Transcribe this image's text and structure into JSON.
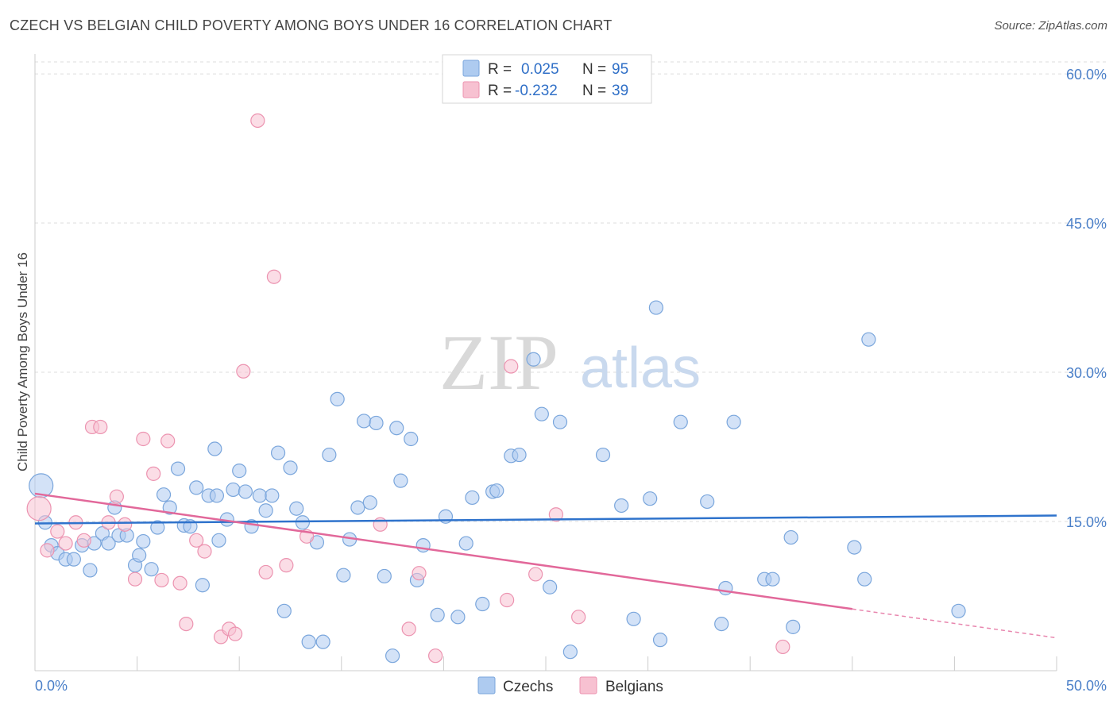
{
  "header": {
    "title": "CZECH VS BELGIAN CHILD POVERTY AMONG BOYS UNDER 16 CORRELATION CHART",
    "source": "Source: ZipAtlas.com"
  },
  "watermark": {
    "zip": "ZIP",
    "atlas": "atlas"
  },
  "colors": {
    "czech_fill": "#aecbf0",
    "czech_stroke": "#7aa6dc",
    "czech_line": "#2f73cc",
    "belgian_fill": "#f7c1d1",
    "belgian_stroke": "#ec93b0",
    "belgian_line": "#e2689a",
    "tick_text": "#4a7fc8"
  },
  "chart_data": {
    "type": "scatter",
    "ylabel": "Child Poverty Among Boys Under 16",
    "xlim": [
      0,
      50
    ],
    "ylim": [
      0,
      62
    ],
    "x_tick_labels": [
      {
        "value": 0,
        "label": "0.0%"
      },
      {
        "value": 50,
        "label": "50.0%"
      }
    ],
    "y_tick_labels": [
      {
        "value": 15,
        "label": "15.0%"
      },
      {
        "value": 30,
        "label": "30.0%"
      },
      {
        "value": 45,
        "label": "45.0%"
      },
      {
        "value": 60,
        "label": "60.0%"
      }
    ],
    "grid": true,
    "legend_position": "top-center",
    "stats": [
      {
        "series": "Czechs",
        "r_label": "R =",
        "r_value": "0.025",
        "n_label": "N =",
        "n_value": "95"
      },
      {
        "series": "Belgians",
        "r_label": "R =",
        "r_value": "-0.232",
        "n_label": "N =",
        "n_value": "39"
      }
    ],
    "series": [
      {
        "name": "Czechs",
        "trend": {
          "x": [
            0,
            50
          ],
          "y": [
            14.8,
            15.6
          ]
        },
        "points": [
          [
            0.3,
            18.6
          ],
          [
            0.5,
            14.9
          ],
          [
            0.8,
            12.6
          ],
          [
            1.1,
            11.8
          ],
          [
            1.5,
            11.2
          ],
          [
            1.9,
            11.2
          ],
          [
            2.3,
            12.6
          ],
          [
            2.7,
            10.1
          ],
          [
            2.9,
            12.8
          ],
          [
            3.3,
            13.8
          ],
          [
            3.6,
            12.8
          ],
          [
            3.9,
            16.4
          ],
          [
            4.1,
            13.6
          ],
          [
            4.5,
            13.6
          ],
          [
            4.9,
            10.6
          ],
          [
            5.1,
            11.6
          ],
          [
            5.3,
            13.0
          ],
          [
            5.7,
            10.2
          ],
          [
            6.0,
            14.4
          ],
          [
            6.3,
            17.7
          ],
          [
            6.6,
            16.4
          ],
          [
            7.0,
            20.3
          ],
          [
            7.3,
            14.6
          ],
          [
            7.6,
            14.5
          ],
          [
            7.9,
            18.4
          ],
          [
            8.2,
            8.6
          ],
          [
            8.5,
            17.6
          ],
          [
            8.8,
            22.3
          ],
          [
            9.0,
            13.1
          ],
          [
            9.4,
            15.2
          ],
          [
            9.7,
            18.2
          ],
          [
            10.0,
            20.1
          ],
          [
            10.3,
            18.0
          ],
          [
            10.6,
            14.5
          ],
          [
            11.0,
            17.6
          ],
          [
            11.3,
            16.1
          ],
          [
            11.6,
            17.6
          ],
          [
            11.9,
            21.9
          ],
          [
            12.2,
            6.0
          ],
          [
            12.5,
            20.4
          ],
          [
            12.8,
            16.3
          ],
          [
            13.1,
            14.9
          ],
          [
            13.4,
            2.9
          ],
          [
            13.8,
            12.9
          ],
          [
            14.1,
            2.9
          ],
          [
            14.4,
            21.7
          ],
          [
            14.8,
            27.3
          ],
          [
            15.1,
            9.6
          ],
          [
            15.4,
            13.2
          ],
          [
            15.8,
            16.4
          ],
          [
            16.1,
            25.1
          ],
          [
            16.4,
            16.9
          ],
          [
            16.7,
            24.9
          ],
          [
            17.1,
            9.5
          ],
          [
            17.5,
            1.5
          ],
          [
            17.7,
            24.4
          ],
          [
            17.9,
            19.1
          ],
          [
            18.4,
            23.3
          ],
          [
            18.7,
            9.1
          ],
          [
            19.0,
            12.6
          ],
          [
            19.7,
            5.6
          ],
          [
            20.1,
            15.5
          ],
          [
            20.7,
            5.4
          ],
          [
            21.1,
            12.8
          ],
          [
            21.4,
            17.4
          ],
          [
            21.9,
            6.7
          ],
          [
            22.4,
            18.0
          ],
          [
            22.6,
            18.1
          ],
          [
            23.3,
            21.6
          ],
          [
            23.7,
            21.7
          ],
          [
            24.4,
            31.3
          ],
          [
            24.8,
            25.8
          ],
          [
            25.2,
            8.4
          ],
          [
            25.7,
            25.0
          ],
          [
            26.2,
            1.9
          ],
          [
            27.8,
            21.7
          ],
          [
            28.7,
            16.6
          ],
          [
            29.3,
            5.2
          ],
          [
            30.1,
            17.3
          ],
          [
            30.4,
            36.5
          ],
          [
            30.6,
            3.1
          ],
          [
            31.6,
            25.0
          ],
          [
            32.9,
            17.0
          ],
          [
            33.6,
            4.7
          ],
          [
            33.8,
            8.3
          ],
          [
            34.2,
            25.0
          ],
          [
            35.7,
            9.2
          ],
          [
            36.1,
            9.2
          ],
          [
            37.1,
            4.4
          ],
          [
            37.0,
            13.4
          ],
          [
            40.1,
            12.4
          ],
          [
            40.6,
            9.2
          ],
          [
            40.8,
            33.3
          ],
          [
            45.2,
            6.0
          ],
          [
            8.9,
            17.6
          ]
        ]
      },
      {
        "name": "Belgians",
        "trend": {
          "x": [
            0,
            40
          ],
          "y": [
            17.8,
            6.2
          ]
        },
        "trend_dashed": {
          "x": [
            40,
            50
          ],
          "y": [
            6.2,
            3.3
          ]
        },
        "points": [
          [
            0.2,
            16.3
          ],
          [
            0.6,
            12.1
          ],
          [
            1.1,
            14.0
          ],
          [
            1.5,
            12.8
          ],
          [
            2.0,
            14.9
          ],
          [
            2.4,
            13.1
          ],
          [
            2.8,
            24.5
          ],
          [
            3.2,
            24.5
          ],
          [
            3.6,
            14.9
          ],
          [
            4.0,
            17.5
          ],
          [
            4.4,
            14.7
          ],
          [
            4.9,
            9.2
          ],
          [
            5.3,
            23.3
          ],
          [
            5.8,
            19.8
          ],
          [
            6.2,
            9.1
          ],
          [
            6.5,
            23.1
          ],
          [
            7.1,
            8.8
          ],
          [
            7.4,
            4.7
          ],
          [
            7.9,
            13.1
          ],
          [
            8.3,
            12.0
          ],
          [
            9.1,
            3.4
          ],
          [
            9.5,
            4.2
          ],
          [
            9.8,
            3.7
          ],
          [
            10.2,
            30.1
          ],
          [
            10.9,
            55.3
          ],
          [
            11.3,
            9.9
          ],
          [
            11.7,
            39.6
          ],
          [
            12.3,
            10.6
          ],
          [
            13.3,
            13.5
          ],
          [
            16.9,
            14.7
          ],
          [
            18.3,
            4.2
          ],
          [
            18.8,
            9.8
          ],
          [
            19.6,
            1.5
          ],
          [
            23.1,
            7.1
          ],
          [
            23.3,
            30.6
          ],
          [
            24.5,
            9.7
          ],
          [
            25.5,
            15.7
          ],
          [
            26.6,
            5.4
          ],
          [
            36.6,
            2.4
          ]
        ]
      }
    ]
  }
}
